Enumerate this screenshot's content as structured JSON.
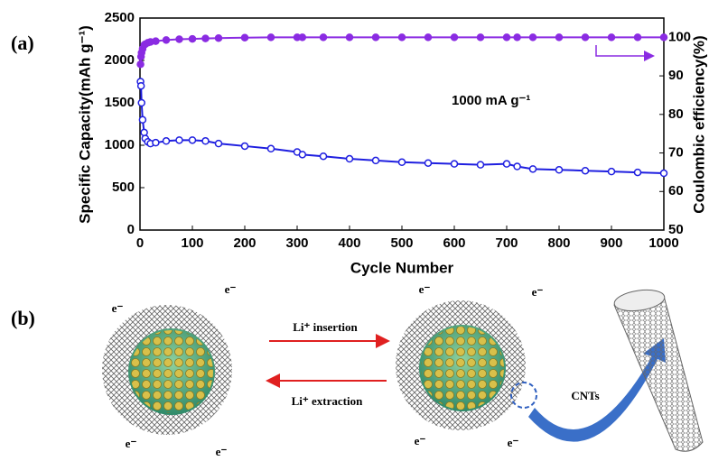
{
  "panel_labels": [
    "(a)",
    "(b)"
  ],
  "chart_data": {
    "type": "scatter",
    "x_label": "Cycle Number",
    "y_label": "Specific Capacity(mAh g⁻¹)",
    "y2_label": "Coulombic efficiency(%)",
    "annotation": "1000 mA g⁻¹",
    "xlim": [
      0,
      1000
    ],
    "xticks": [
      0,
      100,
      200,
      300,
      400,
      500,
      600,
      700,
      800,
      900,
      1000
    ],
    "ylim": [
      0,
      2500
    ],
    "yticks": [
      0,
      500,
      1000,
      1500,
      2000,
      2500
    ],
    "y2lim": [
      50,
      105
    ],
    "y2ticks": [
      50,
      60,
      70,
      80,
      90,
      100
    ],
    "grid": false,
    "x": [
      1,
      2,
      3,
      5,
      8,
      10,
      15,
      20,
      30,
      50,
      75,
      100,
      125,
      150,
      200,
      250,
      300,
      310,
      350,
      400,
      450,
      500,
      550,
      600,
      650,
      700,
      720,
      750,
      800,
      850,
      900,
      950,
      1000
    ],
    "series": [
      {
        "color": "#1f1fe0",
        "values": [
          1750,
          1700,
          1500,
          1300,
          1150,
          1080,
          1040,
          1020,
          1030,
          1050,
          1060,
          1060,
          1050,
          1020,
          990,
          960,
          920,
          890,
          870,
          840,
          820,
          800,
          790,
          780,
          770,
          780,
          750,
          720,
          710,
          700,
          690,
          680,
          670
        ]
      },
      {
        "color": "#8a2be2",
        "axis": "y2",
        "values": [
          93,
          95,
          96,
          97,
          98,
          98.2,
          98.6,
          98.8,
          99,
          99.3,
          99.5,
          99.6,
          99.7,
          99.8,
          99.9,
          100,
          100,
          100,
          100,
          100,
          100,
          100,
          100,
          100,
          100,
          100,
          100,
          100,
          100,
          100,
          100,
          100,
          100
        ]
      }
    ]
  },
  "diagram": {
    "insertion": "Li⁺ insertion",
    "extraction": "Li⁺ extraction",
    "cnt_label": "CNTs",
    "electrons": [
      "e⁻",
      "e⁻",
      "e⁻",
      "e⁻",
      "e⁻",
      "e⁻",
      "e⁻",
      "e⁻"
    ]
  }
}
